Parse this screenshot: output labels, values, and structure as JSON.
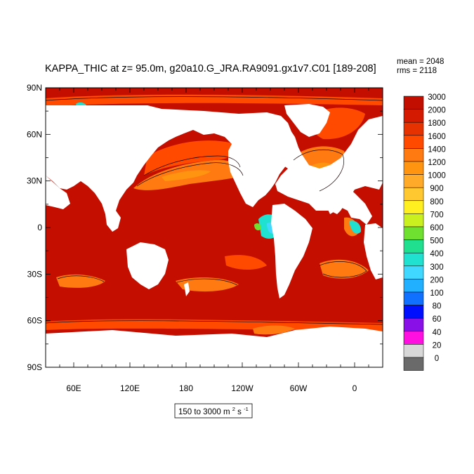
{
  "chart_data": {
    "type": "heatmap",
    "title": "KAPPA_THIC at z=  95.0m, g20a10.G_JRA.RA9091.gx1v7.C01 [189-208]",
    "stats": {
      "mean": "mean = 2048",
      "rms": "rms = 2118"
    },
    "range_label": "150 to 3000",
    "units_label": {
      "base": "m",
      "exp1": "2",
      "mid": " s",
      "exp2": "-1"
    },
    "x_axis": {
      "ticks": [
        "60E",
        "120E",
        "180",
        "120W",
        "60W",
        "0"
      ],
      "range": [
        30,
        390
      ]
    },
    "y_axis": {
      "ticks": [
        "90N",
        "60N",
        "30N",
        "0",
        "30S",
        "60S",
        "90S"
      ],
      "range": [
        -90,
        90
      ]
    },
    "colorbar": {
      "levels": [
        "3000",
        "2000",
        "1800",
        "1600",
        "1400",
        "1200",
        "1000",
        "900",
        "800",
        "700",
        "600",
        "500",
        "400",
        "300",
        "200",
        "100",
        "80",
        "60",
        "40",
        "20",
        "0"
      ],
      "colors": [
        "#c20e00",
        "#d41a00",
        "#e63200",
        "#ff4a00",
        "#ff7a10",
        "#ff9410",
        "#ffaa28",
        "#ffc830",
        "#ffee20",
        "#caf020",
        "#70e030",
        "#20e090",
        "#20e0d0",
        "#40d8ff",
        "#20b0ff",
        "#1070ff",
        "#0010ff",
        "#8a10e8",
        "#ff10e0",
        "#d8d8d8",
        "#6a6a6a"
      ]
    }
  }
}
